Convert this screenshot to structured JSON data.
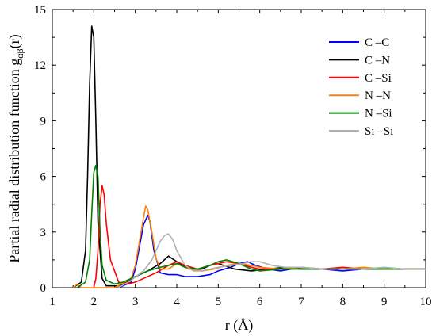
{
  "chart_data": {
    "type": "line",
    "xlabel": "r (Å)",
    "ylabel_main": "Partial radial distribution function g",
    "ylabel_sub": "αβ",
    "ylabel_tail": "(r)",
    "xlim": [
      1,
      10
    ],
    "ylim": [
      0,
      15
    ],
    "xticks": [
      "1",
      "2",
      "3",
      "4",
      "5",
      "6",
      "7",
      "8",
      "9",
      "10"
    ],
    "yticks": [
      "0",
      "3",
      "6",
      "9",
      "12",
      "15"
    ],
    "grid": false,
    "legend_position": "top-right",
    "series": [
      {
        "name": "C –C",
        "color": "#0000ff",
        "x": [
          2.6,
          2.9,
          3.0,
          3.1,
          3.2,
          3.3,
          3.35,
          3.45,
          3.6,
          3.8,
          4.0,
          4.2,
          4.5,
          4.8,
          5.0,
          5.3,
          5.5,
          5.7,
          5.9,
          6.2,
          6.5,
          7.0,
          7.5,
          8.0,
          8.5,
          9.0,
          9.5,
          10.0
        ],
        "y": [
          0.0,
          0.3,
          1.0,
          2.2,
          3.4,
          3.9,
          3.6,
          2.0,
          0.8,
          0.7,
          0.7,
          0.6,
          0.6,
          0.7,
          0.9,
          1.1,
          1.3,
          1.4,
          1.2,
          1.0,
          0.9,
          1.1,
          1.0,
          0.9,
          1.0,
          1.0,
          1.0,
          1.0
        ]
      },
      {
        "name": "C –N",
        "color": "#000000",
        "x": [
          1.5,
          1.7,
          1.8,
          1.85,
          1.9,
          1.95,
          2.0,
          2.05,
          2.1,
          2.2,
          2.3,
          2.6,
          2.8,
          3.0,
          3.3,
          3.6,
          3.8,
          4.0,
          4.3,
          4.6,
          4.8,
          5.0,
          5.4,
          5.8,
          6.2,
          6.6,
          7.0,
          7.5,
          8.0,
          8.5,
          9.0,
          9.5,
          10.0
        ],
        "y": [
          0.0,
          0.3,
          2.0,
          6.0,
          11.0,
          14.1,
          13.5,
          9.0,
          3.5,
          0.5,
          0.1,
          0.1,
          0.3,
          0.6,
          0.9,
          1.3,
          1.7,
          1.4,
          1.0,
          1.0,
          1.2,
          1.3,
          1.0,
          0.9,
          1.0,
          1.1,
          1.0,
          1.0,
          1.0,
          1.0,
          1.0,
          1.0,
          1.0
        ]
      },
      {
        "name": "C –Si",
        "color": "#ff0000",
        "x": [
          2.0,
          2.05,
          2.1,
          2.15,
          2.2,
          2.25,
          2.3,
          2.4,
          2.6,
          2.8,
          3.0,
          3.2,
          3.5,
          3.8,
          4.0,
          4.2,
          4.5,
          4.8,
          5.0,
          5.2,
          5.5,
          5.8,
          6.0,
          6.5,
          7.0,
          7.5,
          8.0,
          8.5,
          9.0,
          9.5,
          10.0
        ],
        "y": [
          0.0,
          0.5,
          2.0,
          4.5,
          5.5,
          5.0,
          3.5,
          1.5,
          0.3,
          0.2,
          0.3,
          0.5,
          0.8,
          1.2,
          1.4,
          1.2,
          1.0,
          1.2,
          1.3,
          1.4,
          1.3,
          1.1,
          1.0,
          1.0,
          1.1,
          1.0,
          1.1,
          1.0,
          1.0,
          1.0,
          1.0
        ]
      },
      {
        "name": "N –N",
        "color": "#ff7f00",
        "x": [
          1.5,
          1.6,
          1.7,
          2.0,
          2.5,
          2.9,
          3.0,
          3.1,
          3.2,
          3.25,
          3.3,
          3.4,
          3.5,
          3.6,
          3.8,
          4.0,
          4.3,
          4.6,
          4.9,
          5.2,
          5.5,
          5.8,
          6.0,
          6.5,
          7.0,
          7.5,
          8.0,
          8.5,
          9.0,
          9.5,
          10.0
        ],
        "y": [
          0.0,
          0.2,
          0.0,
          0.0,
          0.0,
          0.5,
          1.2,
          2.5,
          3.8,
          4.4,
          4.2,
          3.0,
          1.6,
          1.0,
          1.0,
          1.3,
          1.0,
          0.9,
          1.0,
          1.2,
          1.3,
          1.2,
          1.1,
          1.0,
          1.1,
          1.0,
          1.0,
          1.1,
          1.0,
          1.0,
          1.0
        ]
      },
      {
        "name": "N –Si",
        "color": "#008000",
        "x": [
          1.6,
          1.8,
          1.9,
          1.95,
          2.0,
          2.05,
          2.1,
          2.15,
          2.2,
          2.3,
          2.5,
          2.7,
          3.0,
          3.3,
          3.6,
          3.8,
          4.0,
          4.2,
          4.5,
          4.8,
          5.0,
          5.2,
          5.5,
          5.8,
          6.0,
          6.5,
          7.0,
          7.5,
          8.0,
          8.5,
          9.0,
          9.5,
          10.0
        ],
        "y": [
          0.0,
          0.3,
          1.5,
          4.0,
          6.2,
          6.6,
          6.0,
          3.0,
          1.2,
          0.4,
          0.2,
          0.3,
          0.6,
          0.9,
          1.1,
          1.2,
          1.3,
          1.1,
          1.0,
          1.2,
          1.4,
          1.5,
          1.3,
          1.0,
          0.9,
          1.0,
          1.0,
          1.0,
          1.0,
          1.0,
          1.0,
          1.0,
          1.0
        ]
      },
      {
        "name": "Si –Si",
        "color": "#b0b0b0",
        "x": [
          2.6,
          2.9,
          3.2,
          3.4,
          3.5,
          3.6,
          3.7,
          3.8,
          3.9,
          4.0,
          4.2,
          4.4,
          4.6,
          4.8,
          5.0,
          5.3,
          5.6,
          5.8,
          6.0,
          6.3,
          6.6,
          7.0,
          7.5,
          8.0,
          8.5,
          9.0,
          9.5,
          10.0
        ],
        "y": [
          0.0,
          0.4,
          0.9,
          1.5,
          2.0,
          2.5,
          2.8,
          2.9,
          2.6,
          2.0,
          1.2,
          0.9,
          0.9,
          1.0,
          1.1,
          1.2,
          1.3,
          1.4,
          1.4,
          1.2,
          1.1,
          1.1,
          1.0,
          1.0,
          1.0,
          1.1,
          1.0,
          1.0
        ]
      }
    ]
  }
}
